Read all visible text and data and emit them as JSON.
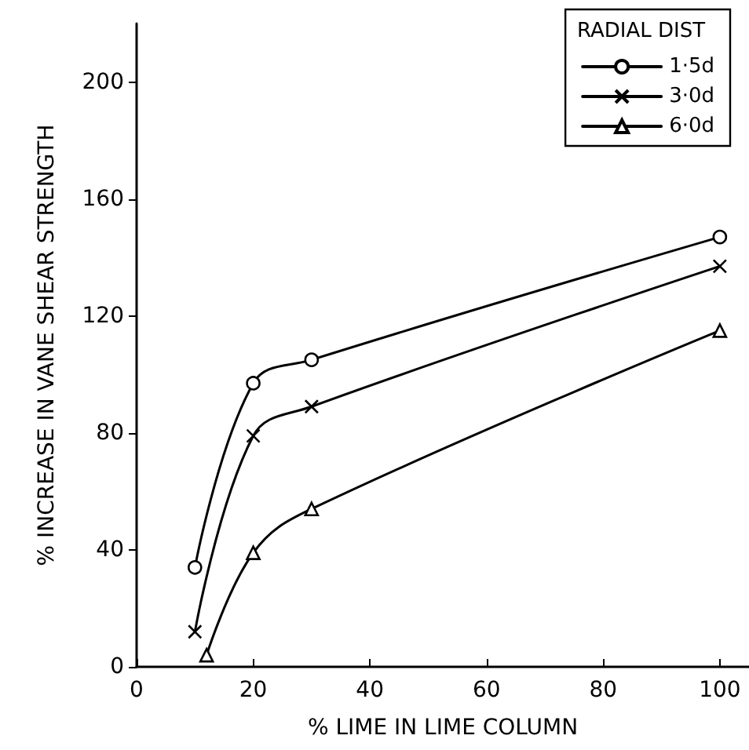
{
  "chart_data": {
    "type": "line",
    "xlabel": "% LIME IN LIME COLUMN",
    "ylabel": "% INCREASE IN VANE SHEAR STRENGTH",
    "legend_title": "RADIAL DIST",
    "legend": "top right",
    "xlim": [
      0,
      105
    ],
    "xticks": [
      0,
      20,
      40,
      60,
      80,
      100
    ],
    "ylim": [
      0,
      220
    ],
    "yticks": [
      0,
      40,
      80,
      120,
      160,
      200
    ],
    "grid": false,
    "line_style": "solid",
    "series": [
      {
        "name": "1·5d",
        "color": "#000000",
        "marker": "circle",
        "x": [
          10,
          20,
          30,
          100
        ],
        "values": [
          34,
          97,
          105,
          147
        ]
      },
      {
        "name": "3·0d",
        "color": "#000000",
        "marker": "cross",
        "x": [
          10,
          20,
          30,
          100
        ],
        "values": [
          12,
          79,
          89,
          137
        ]
      },
      {
        "name": "6·0d",
        "color": "#000000",
        "marker": "triangle",
        "x": [
          12,
          20,
          30,
          100
        ],
        "values": [
          4,
          39,
          54,
          115
        ]
      }
    ]
  }
}
